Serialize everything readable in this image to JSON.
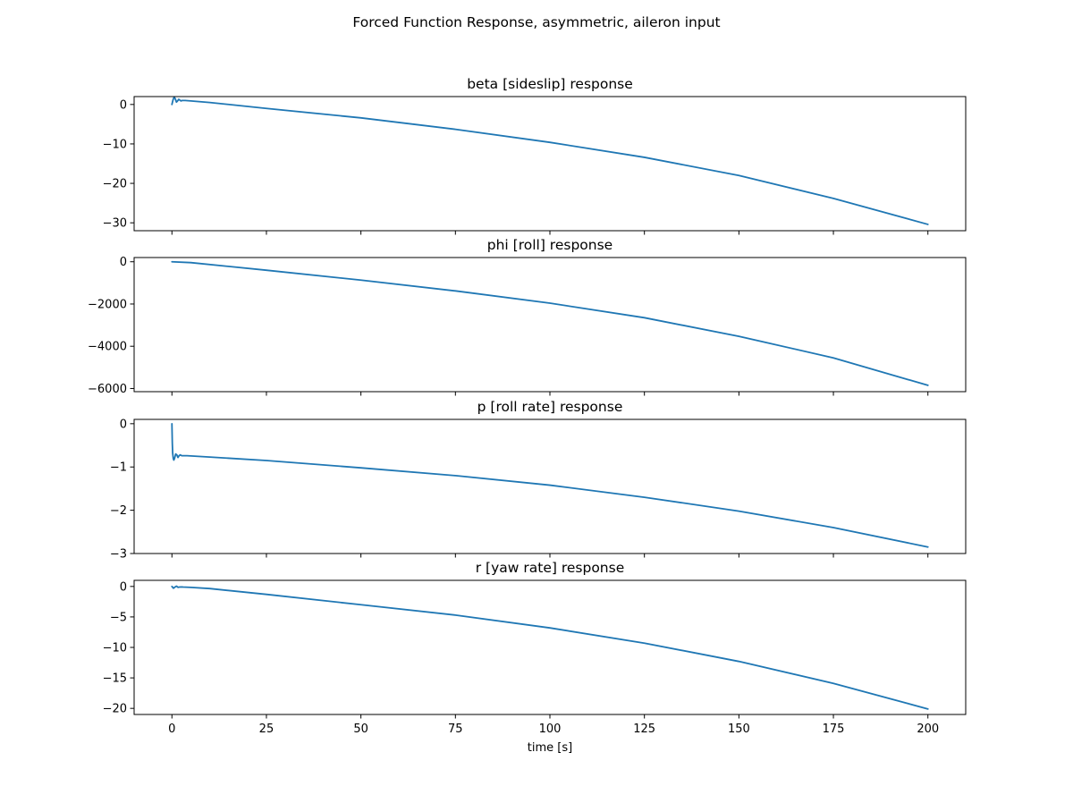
{
  "figure": {
    "suptitle": "Forced Function Response, asymmetric, aileron input",
    "xlabel": "time [s]"
  },
  "chart_data": [
    {
      "type": "line",
      "title": "beta [sideslip] response",
      "xlabel": "",
      "ylabel": "",
      "xlim": [
        -10,
        210
      ],
      "ylim": [
        -32,
        2
      ],
      "xticks": [
        0,
        25,
        50,
        75,
        100,
        125,
        150,
        175,
        200
      ],
      "yticks": [
        0,
        -10,
        -20,
        -30
      ],
      "ytick_labels": [
        "0",
        "−10",
        "−20",
        "−30"
      ],
      "show_xtick_labels": false,
      "color": "#1f77b4",
      "x": [
        0,
        0.3,
        0.6,
        0.9,
        1.2,
        1.5,
        1.8,
        2.1,
        2.4,
        2.7,
        3.0,
        3.5,
        5,
        10,
        25,
        50,
        75,
        100,
        125,
        150,
        175,
        200
      ],
      "y": [
        0,
        1.2,
        1.9,
        1.4,
        0.6,
        0.9,
        1.3,
        1.1,
        0.9,
        1.0,
        1.0,
        1.0,
        0.9,
        0.5,
        -1.0,
        -3.4,
        -6.3,
        -9.6,
        -13.4,
        -18.0,
        -23.8,
        -30.4
      ]
    },
    {
      "type": "line",
      "title": "phi [roll] response",
      "xlabel": "",
      "ylabel": "",
      "xlim": [
        -10,
        210
      ],
      "ylim": [
        -6150,
        200
      ],
      "xticks": [
        0,
        25,
        50,
        75,
        100,
        125,
        150,
        175,
        200
      ],
      "yticks": [
        0,
        -2000,
        -4000,
        -6000
      ],
      "ytick_labels": [
        "0",
        "−2000",
        "−4000",
        "−6000"
      ],
      "show_xtick_labels": false,
      "color": "#1f77b4",
      "x": [
        0,
        5,
        25,
        50,
        75,
        100,
        125,
        150,
        175,
        200
      ],
      "y": [
        0,
        -40,
        -400,
        -870,
        -1380,
        -1960,
        -2650,
        -3530,
        -4550,
        -5850
      ]
    },
    {
      "type": "line",
      "title": "p [roll rate] response",
      "xlabel": "",
      "ylabel": "",
      "xlim": [
        -10,
        210
      ],
      "ylim": [
        -3,
        0.1
      ],
      "xticks": [
        0,
        25,
        50,
        75,
        100,
        125,
        150,
        175,
        200
      ],
      "yticks": [
        0,
        -1,
        -2,
        -3
      ],
      "ytick_labels": [
        "0",
        "−1",
        "−2",
        "−3"
      ],
      "show_xtick_labels": false,
      "color": "#1f77b4",
      "x": [
        0,
        0.1,
        0.2,
        0.35,
        0.5,
        0.7,
        1.0,
        1.3,
        1.6,
        1.9,
        2.2,
        2.6,
        3.0,
        4,
        10,
        25,
        50,
        75,
        100,
        125,
        150,
        175,
        200
      ],
      "y": [
        0,
        -0.45,
        -0.68,
        -0.8,
        -0.84,
        -0.8,
        -0.7,
        -0.72,
        -0.78,
        -0.74,
        -0.72,
        -0.74,
        -0.74,
        -0.74,
        -0.77,
        -0.85,
        -1.02,
        -1.2,
        -1.42,
        -1.7,
        -2.02,
        -2.4,
        -2.85
      ]
    },
    {
      "type": "line",
      "title": "r [yaw rate] response",
      "xlabel": "time [s]",
      "ylabel": "",
      "xlim": [
        -10,
        210
      ],
      "ylim": [
        -21,
        1
      ],
      "xticks": [
        0,
        25,
        50,
        75,
        100,
        125,
        150,
        175,
        200
      ],
      "xtick_labels": [
        "0",
        "25",
        "50",
        "75",
        "100",
        "125",
        "150",
        "175",
        "200"
      ],
      "yticks": [
        0,
        -5,
        -10,
        -15,
        -20
      ],
      "ytick_labels": [
        "0",
        "−5",
        "−10",
        "−15",
        "−20"
      ],
      "show_xtick_labels": true,
      "color": "#1f77b4",
      "x": [
        0,
        0.4,
        0.8,
        1.2,
        1.6,
        2.0,
        2.5,
        3.0,
        5,
        10,
        25,
        50,
        75,
        100,
        125,
        150,
        175,
        200
      ],
      "y": [
        0,
        -0.3,
        -0.1,
        0.05,
        -0.15,
        -0.1,
        -0.08,
        -0.1,
        -0.15,
        -0.35,
        -1.3,
        -3.0,
        -4.7,
        -6.8,
        -9.3,
        -12.3,
        -15.9,
        -20.1
      ]
    }
  ]
}
